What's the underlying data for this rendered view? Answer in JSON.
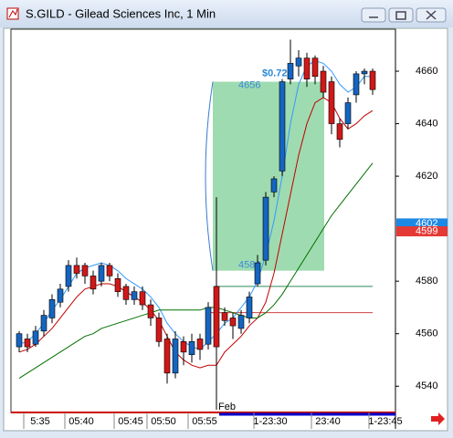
{
  "chart_data": {
    "type": "candlestick",
    "title": "S.GILD - Gilead Sciences Inc, 1 Min",
    "categories": [
      null,
      "5:35",
      null,
      null,
      null,
      null,
      "05:40",
      null,
      null,
      null,
      null,
      null,
      "05:45",
      null,
      null,
      null,
      "05:50",
      null,
      null,
      null,
      null,
      "05:55",
      null,
      null,
      null,
      null,
      null,
      null,
      null,
      "1-23:30",
      null,
      null,
      null,
      null,
      null,
      null,
      "23:40",
      null,
      null,
      null,
      null,
      null,
      null,
      "1-23:45"
    ],
    "open": [
      4555,
      4558,
      4556,
      4561,
      4566,
      4572,
      4578,
      4586,
      4586,
      4582,
      4580,
      4586,
      4581,
      4578,
      4573,
      4576,
      4571,
      4566,
      4558,
      4545,
      4557,
      4552,
      4558,
      4556,
      4578,
      4568,
      4566,
      4562,
      4566,
      4579,
      4588,
      4614,
      4622,
      4657,
      4662,
      4665,
      4665,
      4660,
      4656,
      4640,
      4640,
      4651,
      4659,
      4660
    ],
    "high": [
      4561,
      4560,
      4563,
      4569,
      4575,
      4579,
      4588,
      4589,
      4587,
      4584,
      4587,
      4587,
      4583,
      4579,
      4578,
      4578,
      4573,
      4568,
      4560,
      4561,
      4559,
      4560,
      4560,
      4572,
      4612,
      4570,
      4568,
      4569,
      4576,
      4590,
      4614,
      4620,
      4657,
      4672,
      4668,
      4667,
      4666,
      4662,
      4658,
      4642,
      4650,
      4660,
      4661,
      4661
    ],
    "low": [
      4553,
      4553,
      4555,
      4559,
      4564,
      4570,
      4576,
      4581,
      4579,
      4575,
      4578,
      4580,
      4574,
      4571,
      4571,
      4569,
      4563,
      4555,
      4541,
      4543,
      4548,
      4549,
      4550,
      4554,
      4531,
      4563,
      4558,
      4560,
      4564,
      4578,
      4586,
      4612,
      4620,
      4655,
      4658,
      4654,
      4655,
      4650,
      4636,
      4631,
      4638,
      4648,
      4655,
      4651
    ],
    "close": [
      4560,
      4555,
      4561,
      4567,
      4573,
      4577,
      4586,
      4583,
      4582,
      4577,
      4586,
      4582,
      4576,
      4573,
      4576,
      4571,
      4566,
      4557,
      4545,
      4558,
      4553,
      4557,
      4554,
      4570,
      4555,
      4565,
      4563,
      4567,
      4574,
      4587,
      4612,
      4619,
      4656,
      4663,
      4665,
      4657,
      4658,
      4652,
      4640,
      4634,
      4648,
      4659,
      4660,
      4653
    ],
    "up_color": "#1565c0",
    "down_color": "#d01818",
    "series": [
      {
        "color": "#3399ff",
        "values": [
          4556,
          4557,
          4560,
          4564,
          4569,
          4573,
          4578,
          4583,
          4585,
          4586,
          4587,
          4586,
          4584,
          4581,
          4579,
          4577,
          4574,
          4570,
          4564,
          4560,
          4557,
          4555,
          4554,
          4557,
          4560,
          4564,
          4566,
          4570,
          4574,
          4580,
          4590,
          4603,
          4620,
          4640,
          4655,
          4662,
          4664,
          4663,
          4660,
          4655,
          4652,
          4654,
          4658,
          4658
        ]
      },
      {
        "color": "#c00000",
        "values": [
          4553,
          4554,
          4556,
          4559,
          4562,
          4566,
          4570,
          4574,
          4577,
          4578,
          4579,
          4579,
          4578,
          4576,
          4574,
          4572,
          4569,
          4565,
          4559,
          4553,
          4550,
          4548,
          4547,
          4548,
          4548,
          4553,
          4556,
          4559,
          4563,
          4566,
          4572,
          4583,
          4598,
          4613,
          4628,
          4640,
          4648,
          4650,
          4648,
          4642,
          4638,
          4640,
          4643,
          4645
        ]
      },
      {
        "color": "#007000",
        "values": [
          4543,
          4545,
          4547,
          4549,
          4551,
          4553,
          4555,
          4557,
          4559,
          4560,
          4562,
          4563,
          4564,
          4565,
          4566,
          4567,
          4568,
          4569,
          4569,
          4569,
          4569,
          4569,
          4569,
          4570,
          4570,
          4569,
          4568,
          4567,
          4566,
          4566,
          4568,
          4571,
          4575,
          4580,
          4585,
          4590,
          4595,
          4600,
          4605,
          4609,
          4613,
          4617,
          4621,
          4625
        ]
      }
    ],
    "levels": [
      {
        "value": 4578,
        "color": "#2e8b57",
        "start": 24
      },
      {
        "value": 4568,
        "color": "#d04040",
        "start": 23
      }
    ],
    "range_box": {
      "start": 24,
      "end": 37,
      "low": 4584,
      "high": 4656,
      "label": "$0.72",
      "color": "#7fcf95"
    },
    "last_prices": [
      {
        "value": 4602,
        "color": "#1e88e5"
      },
      {
        "value": 4599,
        "color": "#e53935"
      }
    ],
    "date_marker": {
      "label": "Feb",
      "index": 24
    },
    "ylim": [
      4530,
      4676
    ],
    "yticks": [
      4540,
      4560,
      4580,
      4620,
      4640,
      4660
    ]
  }
}
